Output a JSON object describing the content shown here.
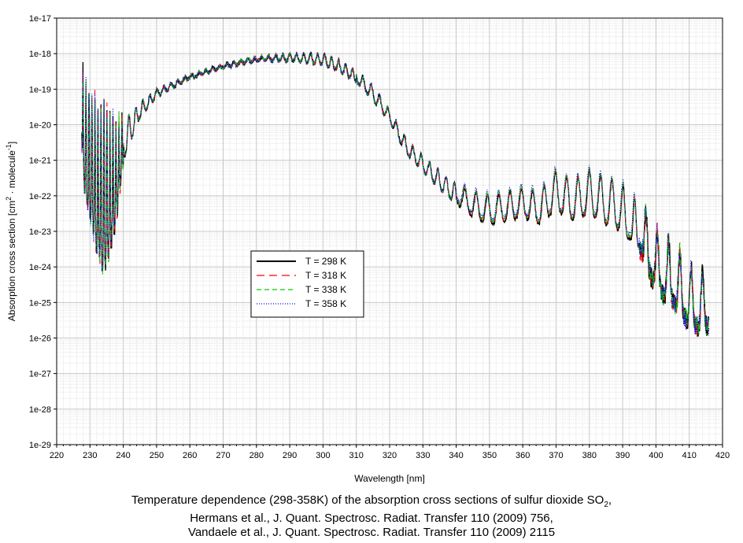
{
  "chart_data": {
    "type": "line",
    "xlabel": "Wavelength [nm]",
    "ylabel_parts": [
      "Absorption cross section [cm",
      "2",
      " · molecule",
      "-1",
      "]"
    ],
    "xlim": [
      220,
      420
    ],
    "ylim_log10": [
      -29,
      -17
    ],
    "y_scale": "log",
    "grid": true,
    "legend_position": "center-left",
    "x_ticks": [
      "220",
      "230",
      "240",
      "250",
      "260",
      "270",
      "280",
      "290",
      "300",
      "310",
      "320",
      "330",
      "340",
      "350",
      "360",
      "370",
      "380",
      "390",
      "400",
      "410",
      "420"
    ],
    "y_ticks": [
      "1e-29",
      "1e-28",
      "1e-27",
      "1e-26",
      "1e-25",
      "1e-24",
      "1e-23",
      "1e-22",
      "1e-21",
      "1e-20",
      "1e-19",
      "1e-18",
      "1e-17"
    ],
    "series": [
      {
        "name": "T = 298 K",
        "color": "#000000",
        "dash": "solid"
      },
      {
        "name": "T = 318 K",
        "color": "#ff0000",
        "dash": "long-dash"
      },
      {
        "name": "T = 338 K",
        "color": "#00cc00",
        "dash": "dash"
      },
      {
        "name": "T = 358 K",
        "color": "#0000ff",
        "dash": "dot"
      }
    ],
    "envelope_log10": {
      "x": [
        227.5,
        228,
        230,
        232,
        234,
        236,
        238,
        240,
        245,
        250,
        260,
        270,
        280,
        290,
        300,
        305,
        310,
        315,
        320,
        325,
        330,
        335,
        340,
        345,
        350,
        355,
        360,
        365,
        370,
        375,
        380,
        385,
        390,
        395,
        400,
        405,
        408,
        410,
        413,
        416
      ],
      "peak": [
        -18.4,
        -18.5,
        -19.0,
        -19.3,
        -19.5,
        -19.7,
        -19.8,
        -19.9,
        -19.4,
        -19.0,
        -18.6,
        -18.3,
        -18.1,
        -18.0,
        -18.0,
        -18.2,
        -18.5,
        -18.9,
        -19.6,
        -20.4,
        -20.9,
        -21.3,
        -21.7,
        -21.9,
        -22.0,
        -21.9,
        -21.8,
        -21.9,
        -21.3,
        -21.6,
        -21.3,
        -21.5,
        -21.7,
        -22.2,
        -23.0,
        -23.3,
        -23.7,
        -24.0,
        -24.2,
        -24.2
      ],
      "trough": [
        -20.5,
        -21.5,
        -22.5,
        -23.5,
        -24.0,
        -23.5,
        -22.5,
        -21.0,
        -19.8,
        -19.2,
        -18.7,
        -18.4,
        -18.2,
        -18.2,
        -18.3,
        -18.5,
        -18.8,
        -19.3,
        -19.9,
        -20.8,
        -21.3,
        -21.8,
        -22.2,
        -22.6,
        -22.8,
        -22.7,
        -22.6,
        -22.8,
        -22.4,
        -22.7,
        -22.5,
        -22.8,
        -23.0,
        -23.5,
        -24.6,
        -25.0,
        -25.3,
        -25.6,
        -25.7,
        -25.7
      ]
    },
    "caption": {
      "line1_parts": [
        "Temperature dependence (298-358K) of the absorption cross sections of sulfur dioxide SO",
        "2",
        ","
      ],
      "line2": "Hermans et al., J. Quant. Spectrosc. Radiat. Transfer 110 (2009) 756,",
      "line3": "Vandaele et al., J. Quant. Spectrosc. Radiat. Transfer 110 (2009) 2115"
    }
  }
}
